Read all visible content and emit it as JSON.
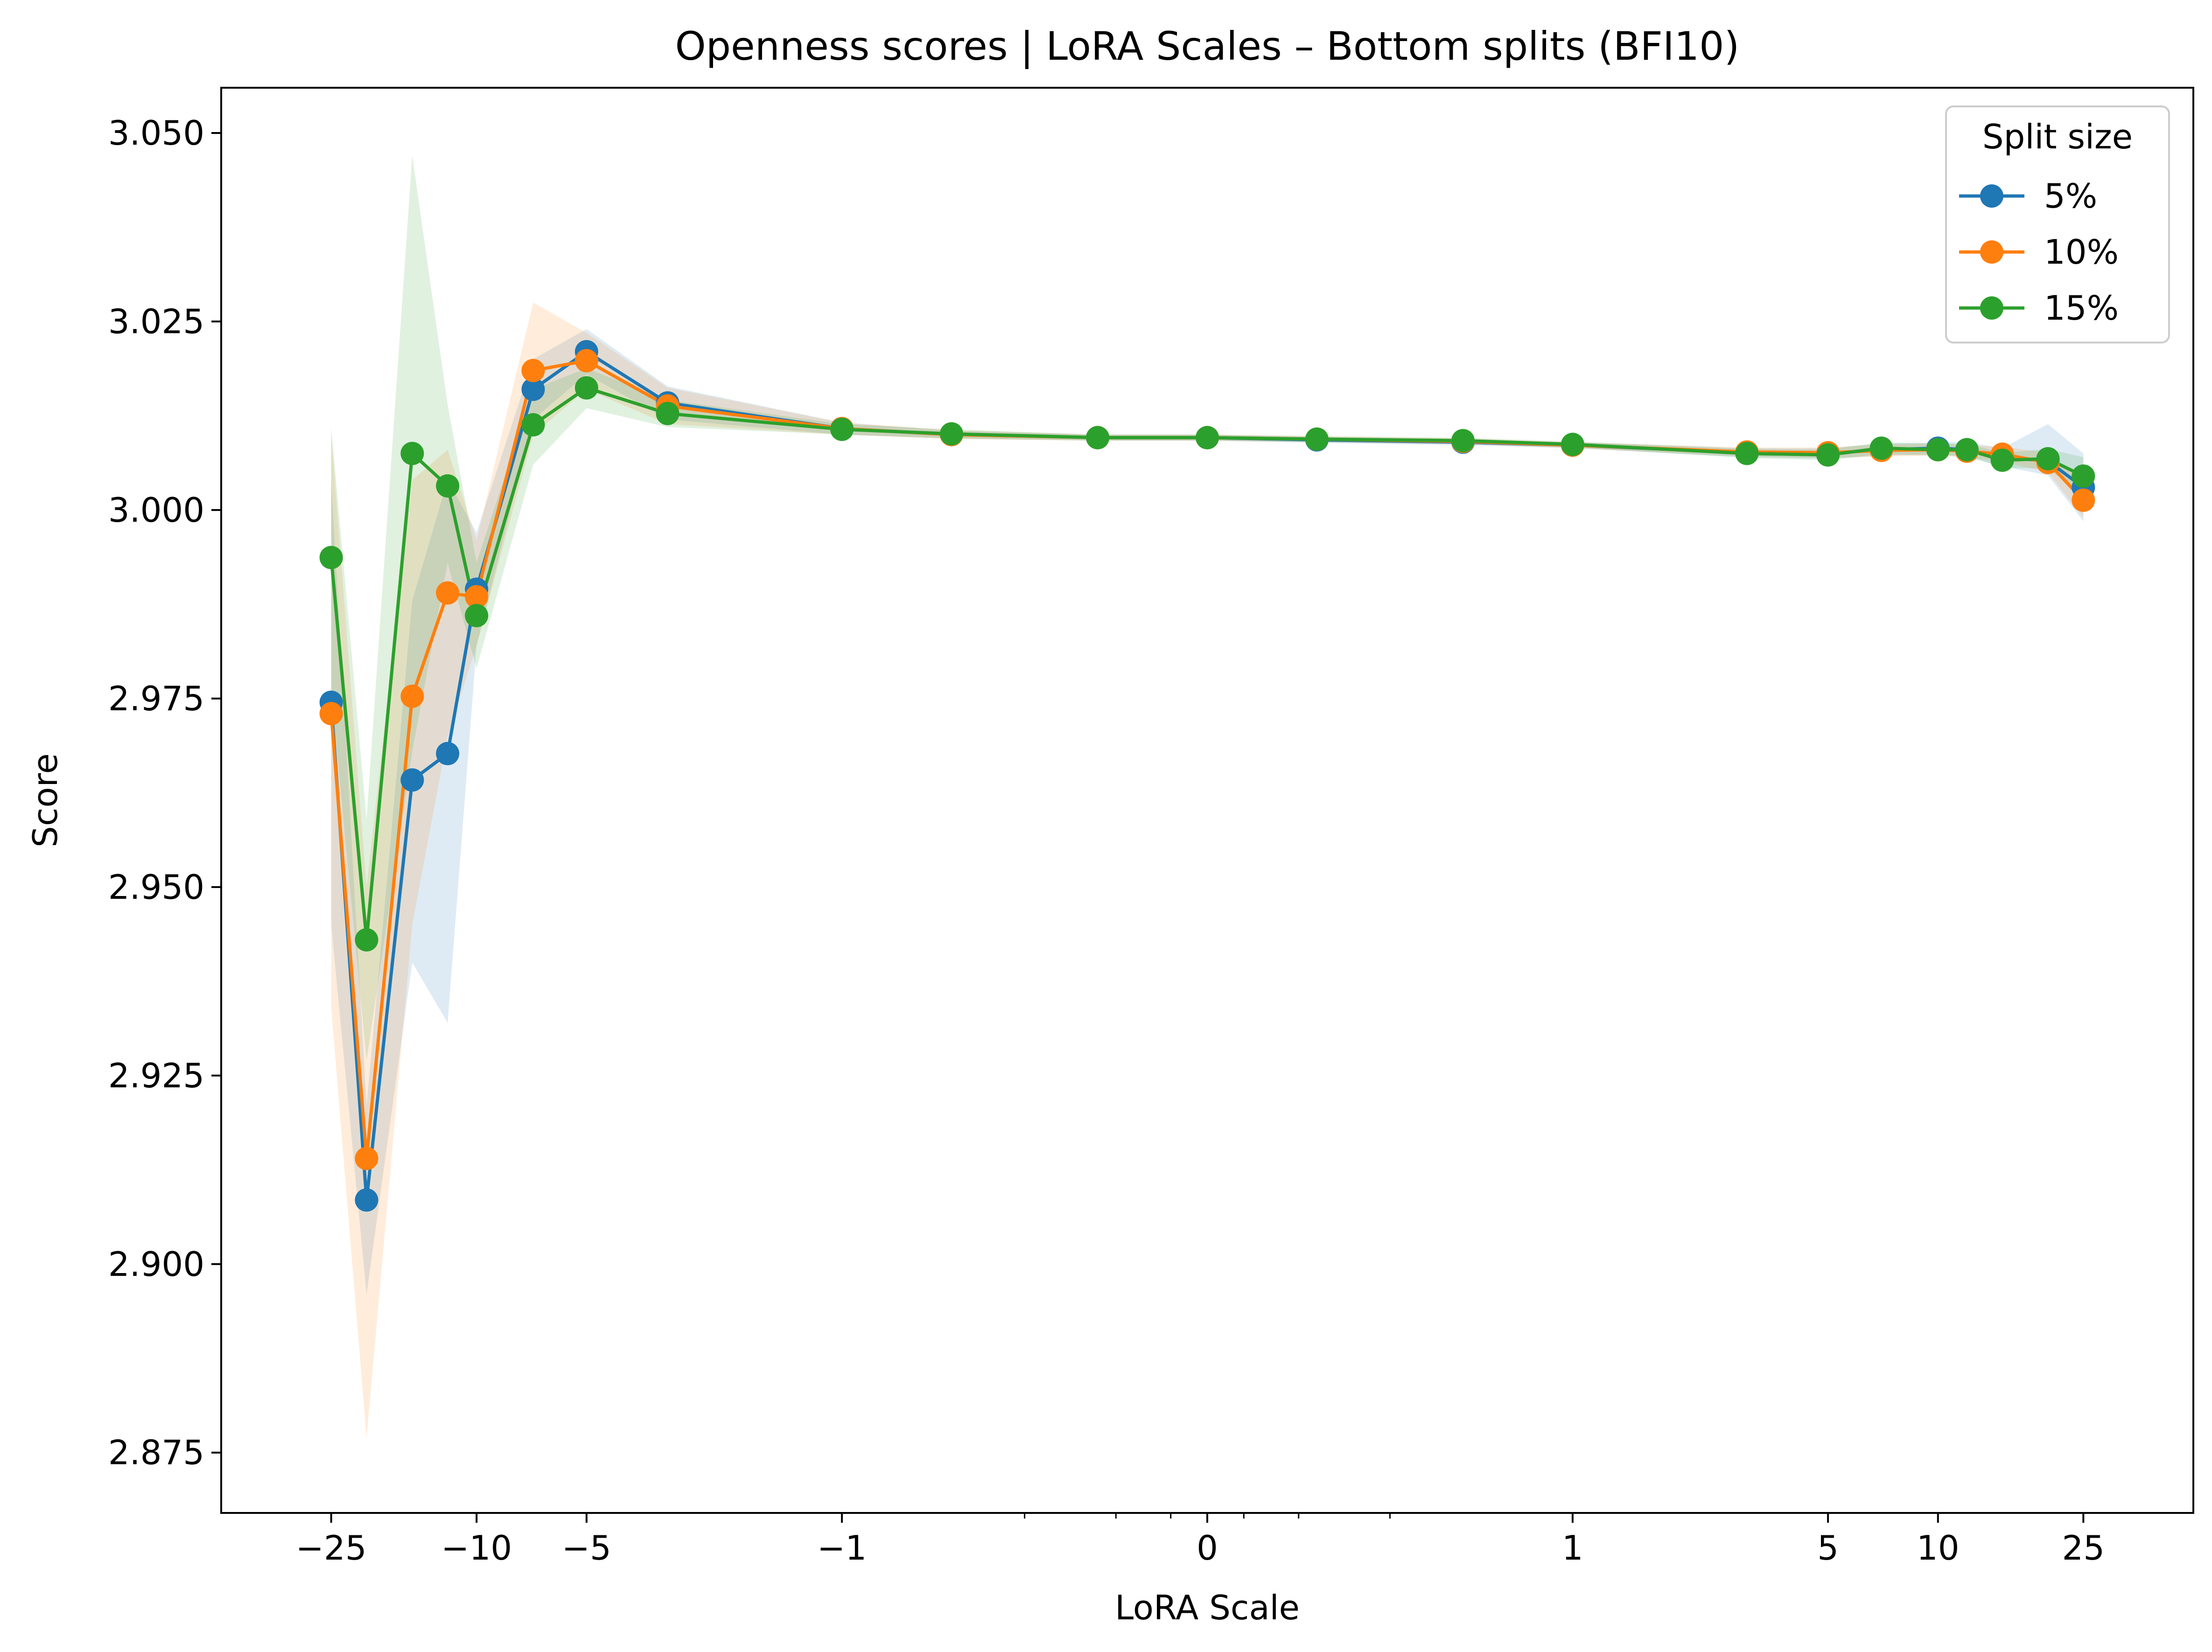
{
  "chart_data": {
    "type": "line",
    "title": "Openness scores | LoRA Scales – Bottom splits (BFI10)",
    "xlabel": "LoRA Scale",
    "ylabel": "Score",
    "x_scale": "symlog",
    "xlim": [
      -50,
      50
    ],
    "ylim": [
      2.867,
      3.056
    ],
    "x_ticks": [
      {
        "value": -25,
        "label": "−25"
      },
      {
        "value": -10,
        "label": "−10"
      },
      {
        "value": -5,
        "label": "−5"
      },
      {
        "value": -1,
        "label": "−1"
      },
      {
        "value": 0,
        "label": "0"
      },
      {
        "value": 1,
        "label": "1"
      },
      {
        "value": 5,
        "label": "5"
      },
      {
        "value": 10,
        "label": "10"
      },
      {
        "value": 25,
        "label": "25"
      }
    ],
    "x_minor_ticks": [
      -0.5,
      -0.25,
      -0.1,
      0.1,
      0.25,
      0.5
    ],
    "y_ticks": [
      {
        "value": 2.875,
        "label": "2.875"
      },
      {
        "value": 2.9,
        "label": "2.900"
      },
      {
        "value": 2.925,
        "label": "2.925"
      },
      {
        "value": 2.95,
        "label": "2.950"
      },
      {
        "value": 2.975,
        "label": "2.975"
      },
      {
        "value": 3.0,
        "label": "3.000"
      },
      {
        "value": 3.025,
        "label": "3.025"
      },
      {
        "value": 3.05,
        "label": "3.050"
      }
    ],
    "grid": false,
    "legend": {
      "title": "Split size",
      "position": "top-right"
    },
    "x": [
      -25,
      -20,
      -15,
      -12,
      -10,
      -7,
      -5,
      -3,
      -1,
      -0.7,
      -0.3,
      0,
      0.3,
      0.7,
      1,
      3,
      5,
      7,
      10,
      12,
      15,
      20,
      25
    ],
    "series": [
      {
        "name": "5%",
        "color": "#1f77b4",
        "values": [
          2.9745,
          2.9085,
          2.9642,
          2.9677,
          2.9895,
          3.016,
          3.021,
          3.0142,
          3.0108,
          3.01,
          3.0096,
          3.0096,
          3.0093,
          3.009,
          3.0086,
          3.0076,
          3.0075,
          3.008,
          3.0082,
          3.008,
          3.007,
          3.0065,
          3.003
        ],
        "band_low": [
          2.945,
          2.896,
          2.94,
          2.932,
          2.982,
          3.012,
          3.018,
          3.012,
          3.01,
          3.0095,
          3.0092,
          3.0092,
          3.0089,
          3.0086,
          3.0082,
          3.007,
          3.0068,
          3.0072,
          3.0074,
          3.007,
          3.0058,
          3.0046,
          2.9985
        ],
        "band_high": [
          3.004,
          2.921,
          2.988,
          3.004,
          2.997,
          3.02,
          3.024,
          3.0164,
          3.0116,
          3.0105,
          3.01,
          3.01,
          3.0097,
          3.0094,
          3.009,
          3.0082,
          3.0082,
          3.0088,
          3.009,
          3.009,
          3.0082,
          3.0114,
          3.0075
        ]
      },
      {
        "name": "10%",
        "color": "#ff7f0e",
        "values": [
          2.973,
          2.914,
          2.9753,
          2.989,
          2.9885,
          3.0185,
          3.0198,
          3.0138,
          3.0108,
          3.01,
          3.0096,
          3.0096,
          3.0094,
          3.0091,
          3.0086,
          3.0077,
          3.0076,
          3.0079,
          3.008,
          3.0078,
          3.0074,
          3.0063,
          3.0013
        ],
        "band_low": [
          2.934,
          2.877,
          2.945,
          2.97,
          2.982,
          3.01,
          3.016,
          3.0114,
          3.01,
          3.0094,
          3.0092,
          3.0092,
          3.009,
          3.0087,
          3.0082,
          3.0071,
          3.0069,
          3.0071,
          3.0072,
          3.007,
          3.0064,
          3.005,
          2.999
        ],
        "band_high": [
          3.01,
          2.95,
          3.004,
          3.008,
          2.996,
          3.0275,
          3.0235,
          3.0162,
          3.0116,
          3.0106,
          3.01,
          3.01,
          3.0098,
          3.0095,
          3.009,
          3.0083,
          3.0083,
          3.0087,
          3.0088,
          3.0086,
          3.0084,
          3.0076,
          3.0036
        ]
      },
      {
        "name": "15%",
        "color": "#2ca02c",
        "values": [
          2.9937,
          2.943,
          3.0075,
          3.0032,
          2.986,
          3.0113,
          3.0162,
          3.0128,
          3.0107,
          3.0101,
          3.0096,
          3.0096,
          3.0094,
          3.0092,
          3.0087,
          3.0075,
          3.0073,
          3.0082,
          3.008,
          3.008,
          3.0066,
          3.0068,
          3.0045
        ],
        "band_low": [
          2.976,
          2.927,
          2.968,
          2.993,
          2.979,
          3.006,
          3.0135,
          3.011,
          3.01,
          3.0095,
          3.0092,
          3.0092,
          3.009,
          3.0088,
          3.0083,
          3.0069,
          3.0066,
          3.0074,
          3.0072,
          3.0072,
          3.0056,
          3.0055,
          3.002
        ],
        "band_high": [
          3.011,
          2.959,
          3.047,
          3.014,
          2.993,
          3.016,
          3.0188,
          3.0146,
          3.0114,
          3.0107,
          3.01,
          3.01,
          3.0098,
          3.0096,
          3.0091,
          3.0081,
          3.008,
          3.009,
          3.0088,
          3.0088,
          3.0076,
          3.0081,
          3.007
        ]
      }
    ]
  }
}
